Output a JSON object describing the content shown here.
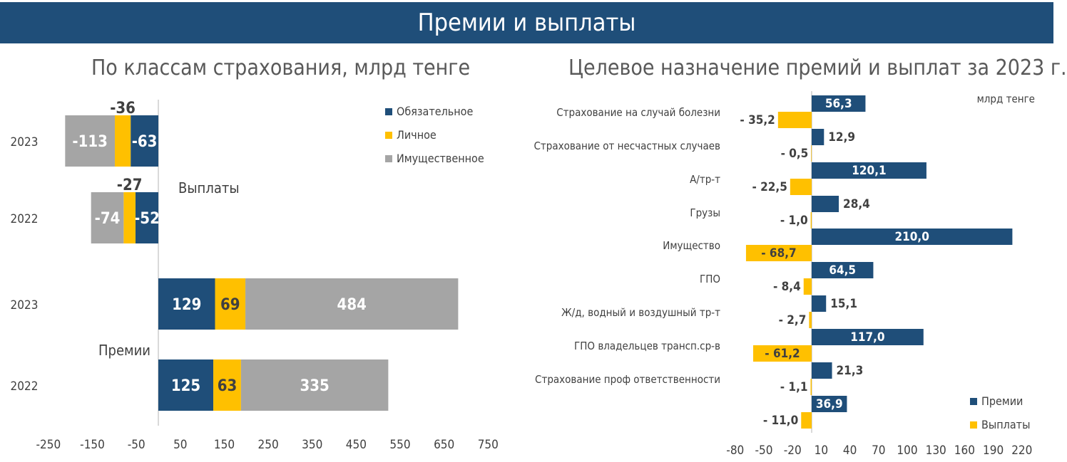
{
  "header": {
    "title": "Премии и выплаты"
  },
  "chart_data": [
    {
      "type": "bar",
      "orientation": "horizontal",
      "stacked": true,
      "title": "По классам страхования, млрд тенге",
      "series": [
        {
          "name": "Обязательное",
          "color": "#1f4e79"
        },
        {
          "name": "Личное",
          "color": "#ffc000"
        },
        {
          "name": "Имущественное",
          "color": "#a5a5a5"
        }
      ],
      "groups": [
        {
          "label": "Выплаты",
          "rows": [
            {
              "category": "2023",
              "values": [
                -63,
                -36,
                -113
              ],
              "labels": [
                "-63",
                "-36",
                "-113"
              ]
            },
            {
              "category": "2022",
              "values": [
                -52,
                -27,
                -74
              ],
              "labels": [
                "-52",
                "-27",
                "-74"
              ]
            }
          ]
        },
        {
          "label": "Премии",
          "rows": [
            {
              "category": "2023",
              "values": [
                129,
                69,
                484
              ],
              "labels": [
                "129",
                "69",
                "484"
              ]
            },
            {
              "category": "2022",
              "values": [
                125,
                63,
                335
              ],
              "labels": [
                "125",
                "63",
                "335"
              ]
            }
          ]
        }
      ],
      "xlim": [
        -250,
        750
      ],
      "xticks": [
        "-250",
        "-150",
        "-50",
        "50",
        "150",
        "250",
        "350",
        "450",
        "550",
        "650",
        "750"
      ],
      "legend_position": "top-right",
      "grid": false
    },
    {
      "type": "bar",
      "orientation": "horizontal",
      "title": "Целевое назначение премий и выплат за 2023 г.",
      "unit_label": "млрд тенге",
      "categories": [
        "Страхование на случай болезни",
        "Страхование от несчастных случаев",
        "А/тр-т",
        "Грузы",
        "Имущество",
        "ГПО",
        "Ж/д, водный и воздушный тр-т",
        "ГПО владельцев трансп.ср-в",
        "Страхование проф ответственности",
        ""
      ],
      "series": [
        {
          "name": "Премии",
          "color": "#1f4e79",
          "values": [
            56.3,
            12.9,
            120.1,
            28.4,
            210.0,
            64.5,
            15.1,
            117.0,
            21.3,
            36.9
          ],
          "labels": [
            "56,3",
            "12,9",
            "120,1",
            "28,4",
            "210,0",
            "64,5",
            "15,1",
            "117,0",
            "21,3",
            "36,9"
          ]
        },
        {
          "name": "Выплаты",
          "color": "#ffc000",
          "values": [
            -35.2,
            -0.5,
            -22.5,
            -1.0,
            -68.7,
            -8.4,
            -2.7,
            -61.2,
            -1.1,
            -11.0
          ],
          "labels": [
            "- 35,2",
            "- 0,5",
            "- 22,5",
            "- 1,0",
            "- 68,7",
            "- 8,4",
            "- 2,7",
            "- 61,2",
            "- 1,1",
            "- 11,0"
          ]
        }
      ],
      "xlim": [
        -80,
        220
      ],
      "xticks": [
        "-80",
        "-50",
        "-20",
        "10",
        "40",
        "70",
        "100",
        "130",
        "160",
        "190",
        "220"
      ],
      "legend_position": "bottom-right",
      "grid": false
    }
  ]
}
